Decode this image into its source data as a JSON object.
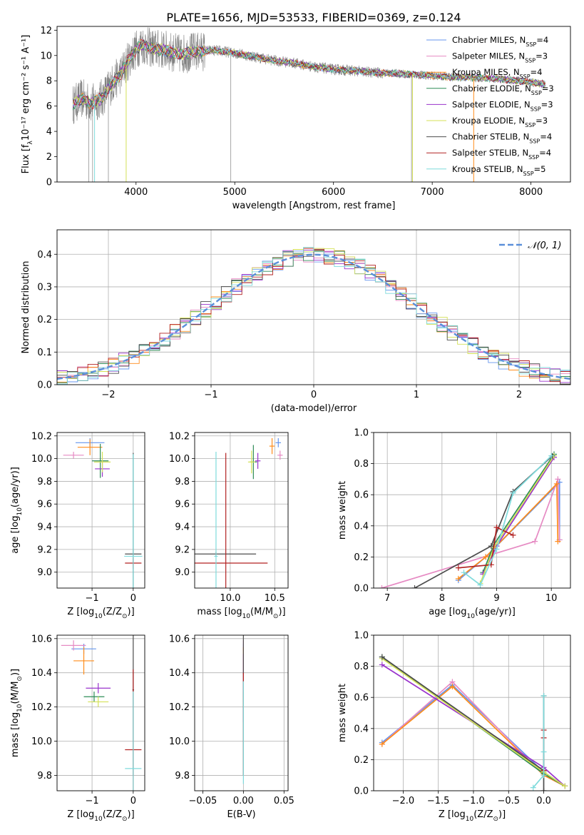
{
  "figure": {
    "title": "PLATE=1656, MJD=53533, FIBERID=0369, z=0.124"
  },
  "series_styles": [
    {
      "name": "Chabrier MILES",
      "nssp": "4",
      "color": "#6495ed"
    },
    {
      "name": "Salpeter MILES",
      "nssp": "3",
      "color": "#e68ac3"
    },
    {
      "name": "Kroupa MILES",
      "nssp": "4",
      "color": "#ff8c1a"
    },
    {
      "name": "Chabrier ELODIE",
      "nssp": "3",
      "color": "#2e8b57"
    },
    {
      "name": "Salpeter ELODIE",
      "nssp": "3",
      "color": "#9932cc"
    },
    {
      "name": "Kroupa ELODIE",
      "nssp": "3",
      "color": "#d4e157"
    },
    {
      "name": "Chabrier STELIB",
      "nssp": "4",
      "color": "#4d4d4d"
    },
    {
      "name": "Salpeter STELIB",
      "nssp": "4",
      "color": "#b22222"
    },
    {
      "name": "Kroupa STELIB",
      "nssp": "5",
      "color": "#7fdbdc"
    }
  ],
  "chart_data": [
    {
      "id": "spectrum",
      "type": "line",
      "title": "PLATE=1656, MJD=53533, FIBERID=0369, z=0.124",
      "xlabel": "wavelength [Angstrom, rest frame]",
      "ylabel": "Flux [fλ10⁻¹⁷ erg cm⁻² s⁻¹ A⁻¹]",
      "xlim": [
        3200,
        8400
      ],
      "ylim": [
        0,
        12.3
      ],
      "xticks": [
        4000,
        5000,
        6000,
        7000,
        8000
      ],
      "yticks": [
        0,
        2,
        4,
        6,
        8,
        10,
        12
      ],
      "data_color": "#808080",
      "continuum": {
        "x": [
          3360,
          3450,
          3550,
          3650,
          3750,
          3850,
          3950,
          4050,
          4150,
          4300,
          4450,
          4600,
          4800,
          5000,
          5200,
          5400,
          5600,
          5800,
          6000,
          6200,
          6400,
          6600,
          6800,
          7000,
          7200,
          7400,
          7600,
          7800,
          8000,
          8150
        ],
        "y": [
          6.1,
          6.6,
          6.2,
          6.6,
          7.7,
          8.6,
          10.0,
          10.9,
          10.6,
          10.4,
          10.1,
          10.3,
          10.4,
          10.2,
          9.9,
          9.6,
          9.4,
          9.1,
          8.9,
          8.8,
          8.65,
          8.6,
          8.5,
          8.4,
          8.3,
          8.25,
          8.2,
          8.05,
          7.9,
          7.7
        ]
      },
      "legend": "top-right",
      "grid": false
    },
    {
      "id": "residuals",
      "type": "histogram",
      "xlabel": "(data-model)/error",
      "ylabel": "Normed distribution",
      "xlim": [
        -2.5,
        2.5
      ],
      "ylim": [
        0,
        0.475
      ],
      "xticks": [
        -2,
        -1,
        0,
        1,
        2
      ],
      "yticks": [
        0.0,
        0.1,
        0.2,
        0.3,
        0.4
      ],
      "legend_label": "𝒩(0, 1)",
      "legend": "top-right",
      "bin_width": 0.1,
      "grid": true
    },
    {
      "id": "age-vs-Z",
      "type": "scatter",
      "xlabel": "Z [log10(Z/Z⊙)]",
      "ylabel": "age  [log10(age/yr)]",
      "xlim": [
        -1.85,
        0.28
      ],
      "ylim": [
        8.86,
        10.23
      ],
      "xticks": [
        -1,
        0
      ],
      "yticks": [
        9.0,
        9.2,
        9.4,
        9.6,
        9.8,
        10.0,
        10.2
      ],
      "points": [
        {
          "s": 0,
          "x": -1.05,
          "y": 10.14,
          "xerr": 0.35,
          "yerr": 0.04
        },
        {
          "s": 1,
          "x": -1.45,
          "y": 10.03,
          "xerr": 0.25,
          "yerr": 0.03
        },
        {
          "s": 2,
          "x": -1.05,
          "y": 10.1,
          "xerr": 0.3,
          "yerr": 0.07
        },
        {
          "s": 3,
          "x": -0.8,
          "y": 9.98,
          "xerr": 0.2,
          "yerr": 0.15
        },
        {
          "s": 4,
          "x": -0.75,
          "y": 9.91,
          "xerr": 0.18,
          "yerr": 0.07
        },
        {
          "s": 5,
          "x": -0.75,
          "y": 9.97,
          "xerr": 0.2,
          "yerr": 0.09
        },
        {
          "s": 6,
          "x": 0.0,
          "y": 9.16,
          "xerr": 0.2,
          "yerr": 0.89
        },
        {
          "s": 7,
          "x": 0.0,
          "y": 9.08,
          "xerr": 0.2,
          "yerr": 0.05
        },
        {
          "s": 8,
          "x": 0.0,
          "y": 9.14,
          "xerr": 0.22,
          "yerr": 0.9
        }
      ],
      "grid": true
    },
    {
      "id": "age-vs-mass",
      "type": "scatter",
      "xlabel": "mass [log10(M/M⊙)]",
      "ylabel": "",
      "xlim": [
        9.6,
        10.65
      ],
      "ylim": [
        8.86,
        10.23
      ],
      "xticks": [
        10.0,
        10.5
      ],
      "yticks": [
        9.0,
        9.2,
        9.4,
        9.6,
        9.8,
        10.0,
        10.2
      ],
      "points": [
        {
          "s": 0,
          "x": 10.54,
          "y": 10.14,
          "xerr": 0.03,
          "yerr": 0.04
        },
        {
          "s": 1,
          "x": 10.56,
          "y": 10.03,
          "xerr": 0.03,
          "yerr": 0.04
        },
        {
          "s": 2,
          "x": 10.47,
          "y": 10.11,
          "xerr": 0.03,
          "yerr": 0.07
        },
        {
          "s": 3,
          "x": 10.26,
          "y": 9.97,
          "xerr": 0.04,
          "yerr": 0.15
        },
        {
          "s": 4,
          "x": 10.31,
          "y": 9.98,
          "xerr": 0.03,
          "yerr": 0.07
        },
        {
          "s": 5,
          "x": 10.24,
          "y": 9.97,
          "xerr": 0.04,
          "yerr": 0.1
        },
        {
          "s": 6,
          "x": 9.84,
          "y": 9.16,
          "xerr": 0.45,
          "yerr": 0.02
        },
        {
          "s": 7,
          "x": 9.95,
          "y": 9.08,
          "xerr": 0.47,
          "yerr": 0.97
        },
        {
          "s": 8,
          "x": 9.84,
          "y": 9.14,
          "xerr": 0.02,
          "yerr": 0.92
        }
      ],
      "grid": true
    },
    {
      "id": "weight-vs-age",
      "type": "line",
      "xlabel": "age  [log10(age/yr)]",
      "ylabel": "mass weight",
      "xlim": [
        6.75,
        10.35
      ],
      "ylim": [
        0,
        1.0
      ],
      "xticks": [
        7,
        8,
        9,
        10
      ],
      "yticks": [
        0.0,
        0.2,
        0.4,
        0.6,
        0.8,
        1.0
      ],
      "series": [
        {
          "s": 0,
          "x": [
            8.3,
            8.8,
            10.15,
            10.15
          ],
          "y": [
            0.05,
            0.2,
            0.68,
            0.31
          ]
        },
        {
          "s": 1,
          "x": [
            6.9,
            9.7,
            10.12,
            10.15
          ],
          "y": [
            0.0,
            0.3,
            0.7,
            0.31
          ]
        },
        {
          "s": 2,
          "x": [
            8.3,
            8.8,
            10.1,
            10.12
          ],
          "y": [
            0.06,
            0.2,
            0.67,
            0.3
          ]
        },
        {
          "s": 3,
          "x": [
            8.75,
            8.95,
            10.05
          ],
          "y": [
            0.1,
            0.28,
            0.86
          ]
        },
        {
          "s": 4,
          "x": [
            8.75,
            9.0,
            10.05
          ],
          "y": [
            0.09,
            0.27,
            0.84
          ]
        },
        {
          "s": 5,
          "x": [
            8.7,
            8.95,
            10.05
          ],
          "y": [
            0.03,
            0.26,
            0.85
          ]
        },
        {
          "s": 6,
          "x": [
            7.5,
            8.9,
            9.3,
            10.02
          ],
          "y": [
            0.0,
            0.27,
            0.62,
            0.85
          ]
        },
        {
          "s": 7,
          "x": [
            8.3,
            8.9,
            9.0,
            9.3
          ],
          "y": [
            0.13,
            0.15,
            0.39,
            0.34
          ]
        },
        {
          "s": 8,
          "x": [
            8.4,
            8.7,
            9.0,
            9.3,
            10.0
          ],
          "y": [
            0.1,
            0.02,
            0.25,
            0.61,
            0.85
          ]
        }
      ],
      "grid": true
    },
    {
      "id": "mass-vs-Z",
      "type": "scatter",
      "xlabel": "Z [log10(Z/Z⊙)]",
      "ylabel": "mass [log10(M/M⊙)]",
      "xlim": [
        -1.85,
        0.28
      ],
      "ylim": [
        9.71,
        10.62
      ],
      "xticks": [
        -1,
        0
      ],
      "yticks": [
        9.8,
        10.0,
        10.2,
        10.4,
        10.6
      ],
      "points": [
        {
          "s": 0,
          "x": -1.2,
          "y": 10.54,
          "xerr": 0.3,
          "yerr": 0.03
        },
        {
          "s": 1,
          "x": -1.45,
          "y": 10.56,
          "xerr": 0.3,
          "yerr": 0.03
        },
        {
          "s": 2,
          "x": -1.2,
          "y": 10.47,
          "xerr": 0.25,
          "yerr": 0.08
        },
        {
          "s": 3,
          "x": -0.95,
          "y": 10.26,
          "xerr": 0.25,
          "yerr": 0.03
        },
        {
          "s": 4,
          "x": -0.85,
          "y": 10.31,
          "xerr": 0.3,
          "yerr": 0.03
        },
        {
          "s": 5,
          "x": -0.85,
          "y": 10.23,
          "xerr": 0.25,
          "yerr": 0.03
        },
        {
          "s": 6,
          "x": 0.0,
          "y": 10.3,
          "xerr": 0.02,
          "yerr": 0.5
        },
        {
          "s": 7,
          "x": 0.0,
          "y": 9.95,
          "xerr": 0.2,
          "yerr": 0.47
        },
        {
          "s": 8,
          "x": 0.0,
          "y": 9.84,
          "xerr": 0.2,
          "yerr": 0.45
        }
      ],
      "grid": true
    },
    {
      "id": "mass-vs-ebv",
      "type": "scatter",
      "xlabel": "E(B-V)",
      "ylabel": "",
      "xlim": [
        -0.06,
        0.055
      ],
      "ylim": [
        9.71,
        10.62
      ],
      "xticks": [
        -0.05,
        0.0,
        0.05
      ],
      "yticks": [
        9.8,
        10.0,
        10.2,
        10.4,
        10.6
      ],
      "points": [
        {
          "s": 0,
          "x": 0.0,
          "y": 10.54,
          "xerr": 0.0,
          "yerr": 0.03
        },
        {
          "s": 1,
          "x": 0.0,
          "y": 10.56,
          "xerr": 0.0,
          "yerr": 0.03
        },
        {
          "s": 2,
          "x": 0.0,
          "y": 10.47,
          "xerr": 0.0,
          "yerr": 0.08
        },
        {
          "s": 3,
          "x": 0.0,
          "y": 10.26,
          "xerr": 0.0,
          "yerr": 0.03
        },
        {
          "s": 4,
          "x": 0.0,
          "y": 10.31,
          "xerr": 0.0,
          "yerr": 0.2
        },
        {
          "s": 5,
          "x": 0.0,
          "y": 10.23,
          "xerr": 0.0,
          "yerr": 0.03
        },
        {
          "s": 6,
          "x": 0.0,
          "y": 10.3,
          "xerr": 0.0,
          "yerr": 0.5
        },
        {
          "s": 7,
          "x": 0.0,
          "y": 10.1,
          "xerr": 0.0,
          "yerr": 0.3
        },
        {
          "s": 8,
          "x": 0.0,
          "y": 10.05,
          "xerr": 0.0,
          "yerr": 0.3
        }
      ],
      "grid": true
    },
    {
      "id": "weight-vs-Z",
      "type": "line",
      "xlabel": "Z [log10(Z/Z⊙)]",
      "ylabel": "mass weight",
      "xlim": [
        -2.42,
        0.38
      ],
      "ylim": [
        0,
        1.0
      ],
      "xticks": [
        -2.0,
        -1.5,
        -1.0,
        -0.5,
        0.0
      ],
      "yticks": [
        0.0,
        0.2,
        0.4,
        0.6,
        0.8,
        1.0
      ],
      "series": [
        {
          "s": 0,
          "x": [
            -2.3,
            -1.3,
            0.0,
            0.3
          ],
          "y": [
            0.31,
            0.68,
            0.12,
            0.03
          ]
        },
        {
          "s": 1,
          "x": [
            -2.3,
            -1.3,
            0.0,
            0.3
          ],
          "y": [
            0.3,
            0.7,
            0.1,
            0.03
          ]
        },
        {
          "s": 2,
          "x": [
            -2.3,
            -1.3,
            0.0,
            0.3
          ],
          "y": [
            0.3,
            0.67,
            0.1,
            0.03
          ]
        },
        {
          "s": 3,
          "x": [
            -2.3,
            0.0,
            0.3
          ],
          "y": [
            0.86,
            0.11,
            0.03
          ]
        },
        {
          "s": 4,
          "x": [
            -2.3,
            0.0,
            0.3
          ],
          "y": [
            0.81,
            0.15,
            0.03
          ]
        },
        {
          "s": 5,
          "x": [
            -2.3,
            0.0,
            0.3
          ],
          "y": [
            0.85,
            0.12,
            0.03
          ]
        },
        {
          "s": 6,
          "x": [
            -2.3,
            0.0,
            0.0,
            0.0
          ],
          "y": [
            0.86,
            0.13,
            0.61,
            0.0
          ]
        },
        {
          "s": 7,
          "x": [
            0.0,
            0.0,
            0.0
          ],
          "y": [
            0.39,
            0.34,
            0.13
          ]
        },
        {
          "s": 8,
          "x": [
            -0.15,
            0.0,
            0.0,
            0.0
          ],
          "y": [
            0.02,
            0.1,
            0.25,
            0.61
          ]
        }
      ],
      "grid": true
    }
  ]
}
